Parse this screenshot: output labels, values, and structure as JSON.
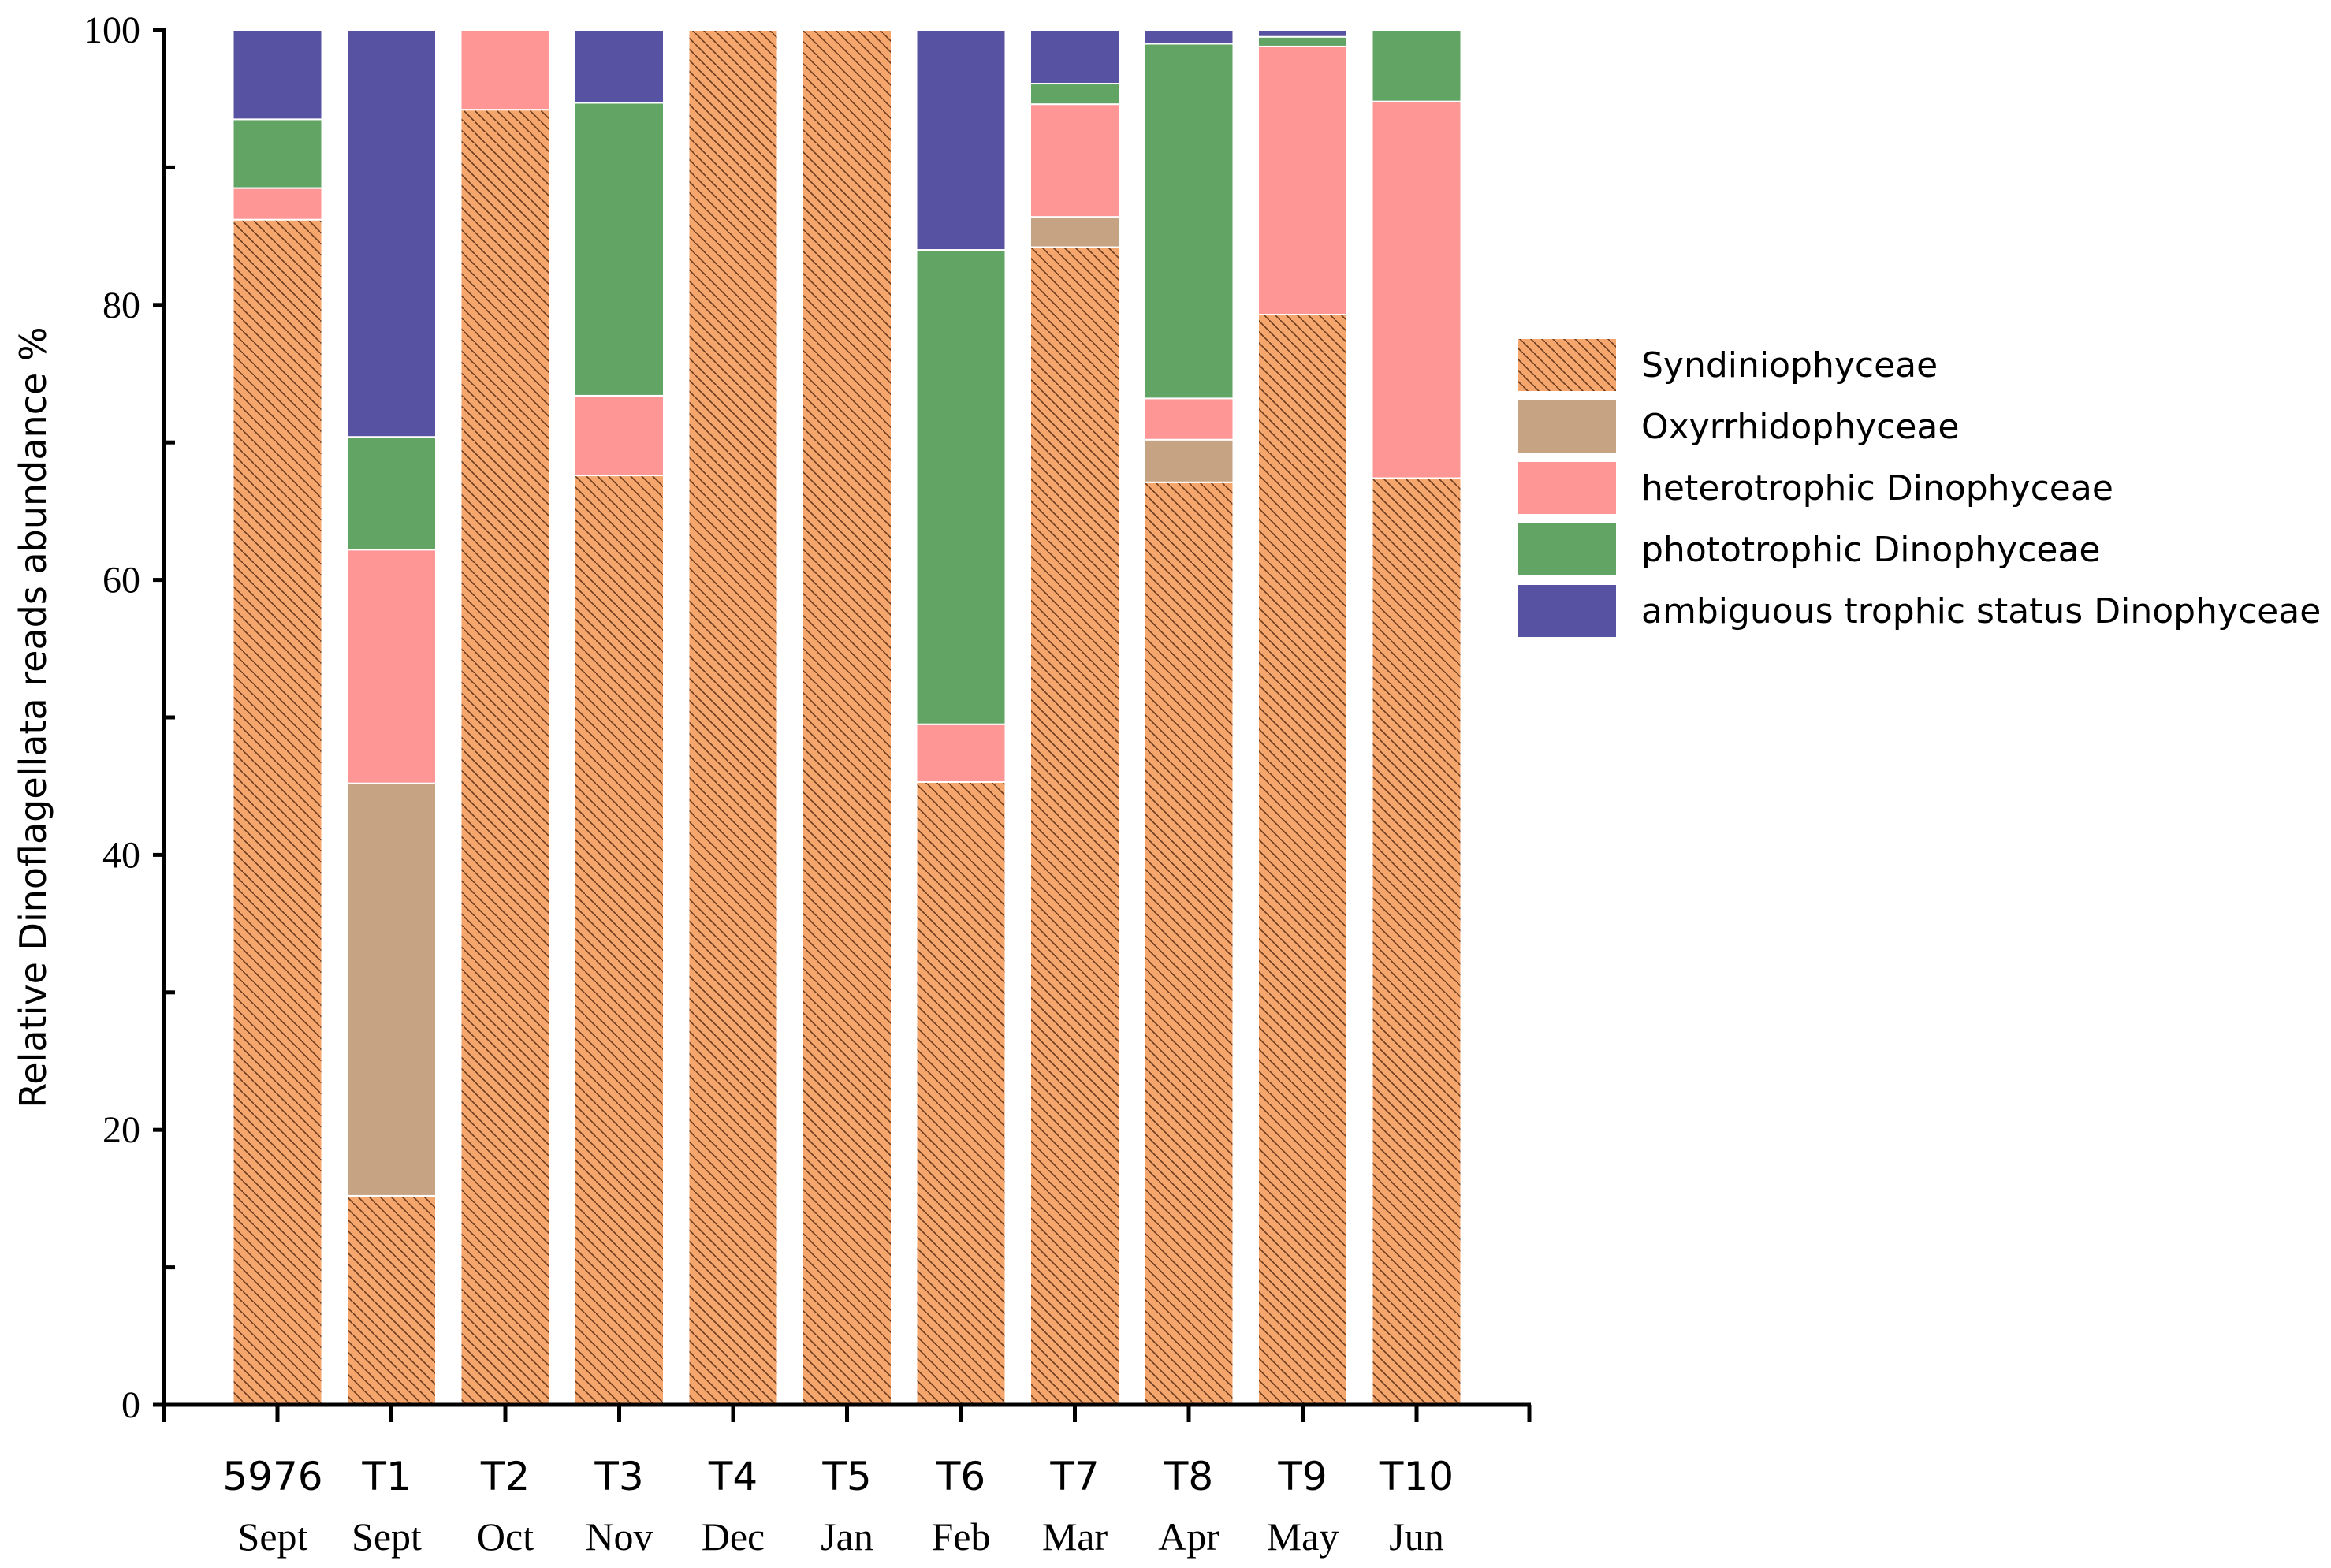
{
  "chart_data": {
    "type": "bar",
    "stacked": true,
    "ylabel": "Relative Dinoflagellata reads abundance %",
    "xlabel": "",
    "ylim": [
      0,
      100
    ],
    "yticks": [
      0,
      20,
      40,
      60,
      80,
      100
    ],
    "categories": [
      "5976",
      "T1",
      "T2",
      "T3",
      "T4",
      "T5",
      "T6",
      "T7",
      "T8",
      "T9",
      "T10"
    ],
    "months": [
      "Sept",
      "Sept",
      "Oct",
      "Nov",
      "Dec",
      "Jan",
      "Feb",
      "Mar",
      "Apr",
      "May",
      "Jun"
    ],
    "legend_position": "right",
    "grid": false,
    "series": [
      {
        "name": "Syndiniophyceae",
        "color": "#f4a66c",
        "hatch": true,
        "values": [
          86.2,
          15.2,
          94.2,
          67.6,
          100,
          100,
          45.3,
          84.2,
          67.1,
          79.3,
          67.4
        ]
      },
      {
        "name": "Oxyrrhidophyceae",
        "color": "#c6a383",
        "values": [
          0,
          30.0,
          0,
          0,
          0,
          0,
          0,
          2.2,
          3.1,
          0,
          0
        ]
      },
      {
        "name": "heterotrophic Dinophyceae",
        "color": "#ff9696",
        "values": [
          2.3,
          17.0,
          5.8,
          5.8,
          0,
          0,
          4.2,
          8.2,
          3.0,
          19.5,
          27.4
        ]
      },
      {
        "name": "phototrophic Dinophyceae",
        "color": "#61a463",
        "values": [
          5.0,
          8.2,
          0,
          21.3,
          0,
          0,
          34.5,
          1.5,
          25.8,
          0.7,
          5.2
        ]
      },
      {
        "name": "ambiguous trophic status Dinophyceae",
        "color": "#5852a2",
        "values": [
          6.5,
          29.6,
          0,
          5.3,
          0,
          0,
          16.0,
          3.9,
          1.0,
          0.5,
          0
        ]
      }
    ]
  }
}
